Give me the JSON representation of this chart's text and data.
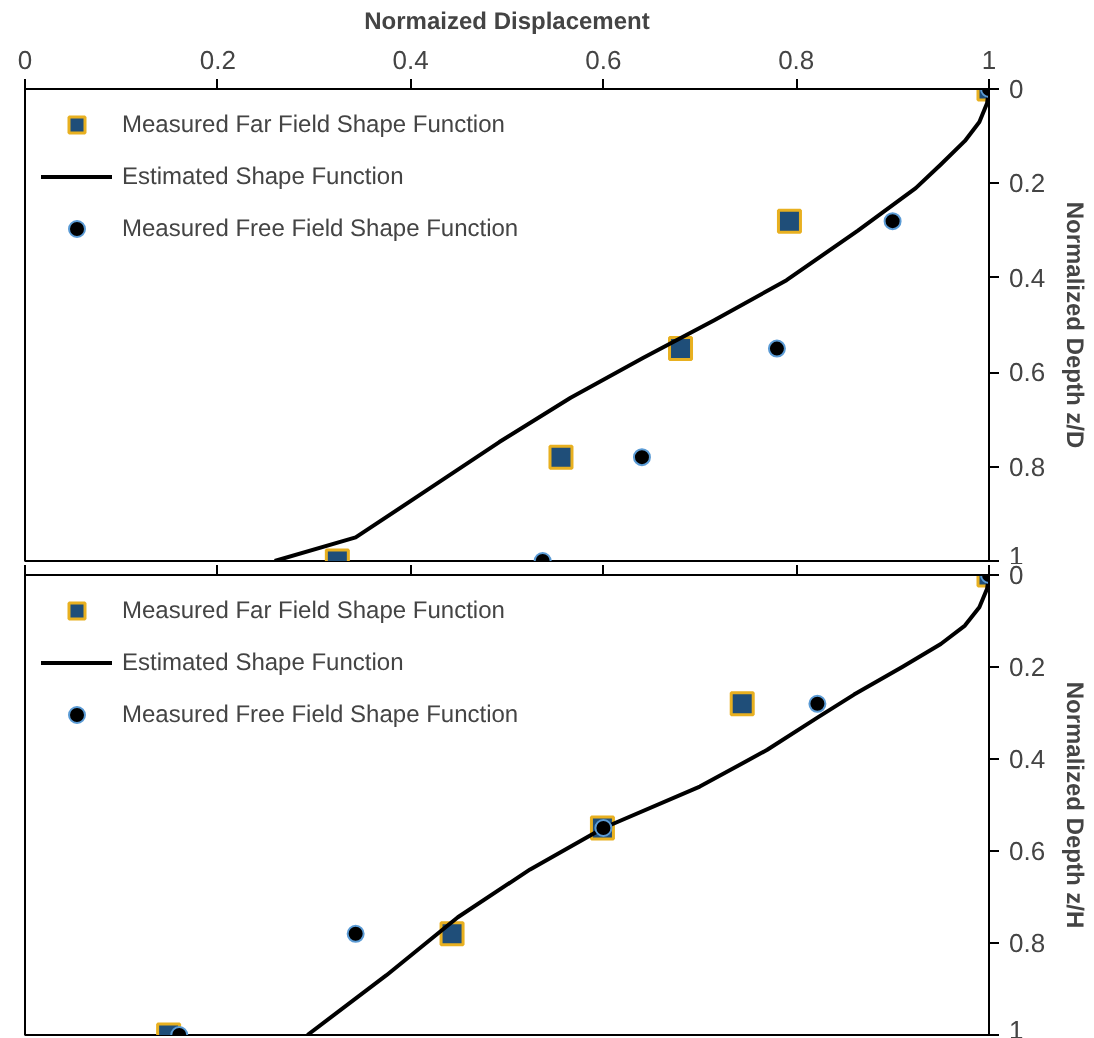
{
  "chart_data": [
    {
      "type": "scatter",
      "xlabel": "Normaized Displacement",
      "ylabel": "Normalized Depth z/D",
      "xlim": [
        0,
        1
      ],
      "xticks": [
        0,
        0.2,
        0.4,
        0.6,
        0.8,
        1
      ],
      "ylim": [
        1,
        0
      ],
      "yticks": [
        0,
        0.2,
        0.4,
        0.6,
        0.8,
        1
      ],
      "legend": "top left",
      "grid": false,
      "series": [
        {
          "name": "Measured Far Field Shape Function",
          "marker": "square",
          "color": "#1f4e79",
          "x": [
            1,
            0.793,
            0.68,
            0.556,
            0.324
          ],
          "values": [
            0,
            0.28,
            0.55,
            0.78,
            1
          ]
        },
        {
          "name": "Estimated Shape Function",
          "type": "line",
          "marker": "none",
          "color": "#000000",
          "x": [
            1,
            0.998,
            0.99,
            0.975,
            0.95,
            0.924,
            0.864,
            0.79,
            0.715,
            0.641,
            0.566,
            0.492,
            0.417,
            0.343,
            0.259
          ],
          "values": [
            0,
            0.03,
            0.07,
            0.11,
            0.16,
            0.21,
            0.3,
            0.405,
            0.49,
            0.57,
            0.654,
            0.748,
            0.85,
            0.95,
            1
          ]
        },
        {
          "name": "Measured Free Field Shape Function",
          "marker": "circle",
          "color": "#000000",
          "x": [
            1,
            0.9,
            0.78,
            0.64,
            0.537
          ],
          "values": [
            0,
            0.28,
            0.55,
            0.78,
            1
          ]
        }
      ]
    },
    {
      "type": "scatter",
      "ylabel": "Normalized Depth z/H",
      "xlim": [
        0,
        1
      ],
      "xticks": [
        0,
        0.2,
        0.4,
        0.6,
        0.8,
        1
      ],
      "ylim": [
        1,
        0
      ],
      "yticks": [
        0,
        0.2,
        0.4,
        0.6,
        0.8,
        1
      ],
      "legend": "top left",
      "grid": false,
      "tick_labels": "y",
      "series": [
        {
          "name": "Measured Far Field Shape Function",
          "marker": "square",
          "color": "#1f4e79",
          "x": [
            1,
            0.744,
            0.599,
            0.443,
            0.149
          ],
          "values": [
            0,
            0.28,
            0.55,
            0.78,
            1
          ]
        },
        {
          "name": "Estimated Shape Function",
          "type": "line",
          "marker": "none",
          "color": "#000000",
          "x": [
            1,
            0.998,
            0.99,
            0.975,
            0.95,
            0.91,
            0.86,
            0.822,
            0.77,
            0.7,
            0.6,
            0.524,
            0.449,
            0.375,
            0.293
          ],
          "values": [
            0,
            0.03,
            0.07,
            0.11,
            0.15,
            0.2,
            0.26,
            0.31,
            0.38,
            0.46,
            0.55,
            0.64,
            0.744,
            0.87,
            1
          ]
        },
        {
          "name": "Measured Free Field Shape Function",
          "marker": "circle",
          "color": "#000000",
          "x": [
            1,
            0.822,
            0.6,
            0.343,
            0.16
          ],
          "values": [
            0,
            0.28,
            0.55,
            0.78,
            1
          ]
        }
      ]
    }
  ]
}
